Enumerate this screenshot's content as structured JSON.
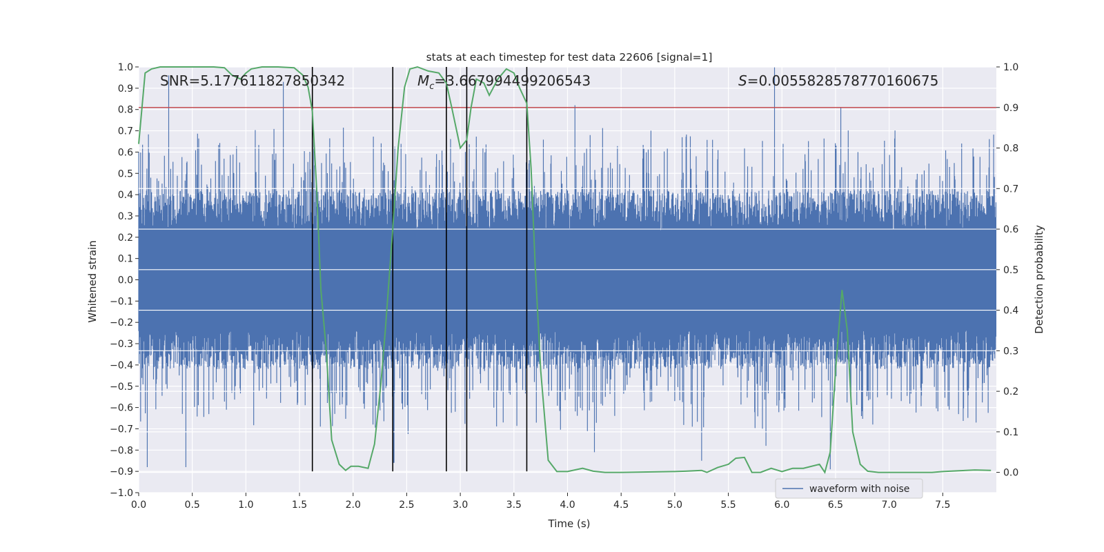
{
  "chart_data": {
    "type": "line",
    "title": "stats at each timestep for test data 22606 [signal=1]",
    "xlabel": "Time (s)",
    "ylabel_left": "Whitened strain",
    "ylabel_right": "Detection probability",
    "xlim": [
      0.0,
      8.0
    ],
    "ylim_left": [
      -1.0,
      1.0
    ],
    "ylim_right": [
      -0.05,
      1.0
    ],
    "x_ticks": [
      0.0,
      0.5,
      1.0,
      1.5,
      2.0,
      2.5,
      3.0,
      3.5,
      4.0,
      4.5,
      5.0,
      5.5,
      6.0,
      6.5,
      7.0,
      7.5
    ],
    "x_tick_labels": [
      "0.0",
      "0.5",
      "1.0",
      "1.5",
      "2.0",
      "2.5",
      "3.0",
      "3.5",
      "4.0",
      "4.5",
      "5.0",
      "5.5",
      "6.0",
      "6.5",
      "7.0",
      "7.5"
    ],
    "y_left_ticks": [
      -1.0,
      -0.9,
      -0.8,
      -0.7,
      -0.6,
      -0.5,
      -0.4,
      -0.3,
      -0.2,
      -0.1,
      0.0,
      0.1,
      0.2,
      0.3,
      0.4,
      0.5,
      0.6,
      0.7,
      0.8,
      0.9,
      1.0
    ],
    "y_left_tick_labels": [
      "−1.0",
      "−0.9",
      "−0.8",
      "−0.7",
      "−0.6",
      "−0.5",
      "−0.4",
      "−0.3",
      "−0.2",
      "−0.1",
      "0.0",
      "0.1",
      "0.2",
      "0.3",
      "0.4",
      "0.5",
      "0.6",
      "0.7",
      "0.8",
      "0.9",
      "1.0"
    ],
    "y_right_ticks": [
      0.0,
      0.1,
      0.2,
      0.3,
      0.4,
      0.5,
      0.6,
      0.7,
      0.8,
      0.9,
      1.0
    ],
    "y_right_tick_labels": [
      "0.0",
      "0.1",
      "0.2",
      "0.3",
      "0.4",
      "0.5",
      "0.6",
      "0.7",
      "0.8",
      "0.9",
      "1.0"
    ],
    "annotations": {
      "snr": "SNR=5.177611827850342",
      "mc_symbol": "M",
      "mc_sub": "c",
      "mc_value": "=3.667994499206543",
      "s_symbol": "S",
      "s_value": "=0.0055828578770160675"
    },
    "threshold": {
      "value": 0.9,
      "axis": "right",
      "color": "#c44e52"
    },
    "vertical_markers": [
      1.62,
      2.37,
      2.87,
      3.06,
      3.62
    ],
    "vertical_marker_range": [
      -0.9,
      1.0
    ],
    "waveform": {
      "name": "waveform with noise",
      "color": "#4c72b0",
      "duration": 8.0,
      "samples": 2200,
      "typical_amplitude": 0.42,
      "spikes": [
        [
          0.28,
          0.96
        ],
        [
          1.35,
          0.93
        ],
        [
          4.07,
          0.82
        ],
        [
          5.93,
          1.0
        ],
        [
          6.55,
          0.81
        ],
        [
          0.08,
          -0.88
        ],
        [
          0.44,
          -0.88
        ],
        [
          2.38,
          -0.86
        ],
        [
          5.25,
          -0.85
        ],
        [
          6.45,
          -0.89
        ],
        [
          4.25,
          -0.81
        ],
        [
          5.85,
          -0.78
        ]
      ]
    },
    "probability": {
      "name": "detection probability",
      "color": "#55a868",
      "x": [
        0.0,
        0.06,
        0.12,
        0.2,
        0.3,
        0.5,
        0.7,
        0.8,
        0.87,
        0.95,
        1.0,
        1.05,
        1.15,
        1.3,
        1.45,
        1.53,
        1.58,
        1.62,
        1.66,
        1.7,
        1.75,
        1.8,
        1.87,
        1.93,
        1.98,
        2.05,
        2.14,
        2.2,
        2.26,
        2.3,
        2.37,
        2.42,
        2.48,
        2.53,
        2.6,
        2.7,
        2.8,
        2.87,
        2.92,
        2.96,
        3.0,
        3.06,
        3.1,
        3.15,
        3.22,
        3.27,
        3.35,
        3.43,
        3.5,
        3.55,
        3.62,
        3.66,
        3.7,
        3.75,
        3.82,
        3.9,
        4.0,
        4.14,
        4.24,
        4.35,
        4.5,
        4.75,
        5.0,
        5.1,
        5.25,
        5.3,
        5.4,
        5.5,
        5.57,
        5.65,
        5.72,
        5.8,
        5.9,
        6.0,
        6.1,
        6.2,
        6.35,
        6.4,
        6.45,
        6.5,
        6.56,
        6.61,
        6.66,
        6.73,
        6.8,
        6.9,
        7.0,
        7.2,
        7.4,
        7.5,
        7.65,
        7.8,
        7.95
      ],
      "values": [
        0.81,
        0.985,
        0.995,
        1.0,
        1.0,
        1.0,
        1.0,
        0.998,
        0.98,
        0.97,
        0.985,
        0.995,
        1.0,
        1.0,
        0.998,
        0.98,
        0.95,
        0.89,
        0.7,
        0.45,
        0.3,
        0.08,
        0.02,
        0.005,
        0.015,
        0.015,
        0.01,
        0.07,
        0.22,
        0.35,
        0.6,
        0.8,
        0.95,
        0.995,
        1.0,
        0.99,
        0.985,
        0.96,
        0.9,
        0.85,
        0.8,
        0.82,
        0.9,
        0.97,
        0.96,
        0.93,
        0.97,
        0.995,
        0.985,
        0.95,
        0.91,
        0.75,
        0.5,
        0.25,
        0.03,
        0.002,
        0.002,
        0.01,
        0.003,
        0.0,
        0.0,
        0.001,
        0.002,
        0.003,
        0.005,
        0.0,
        0.012,
        0.02,
        0.035,
        0.037,
        0.0,
        0.0,
        0.01,
        0.002,
        0.01,
        0.01,
        0.02,
        0.0,
        0.05,
        0.25,
        0.45,
        0.35,
        0.1,
        0.02,
        0.003,
        0.0,
        0.0,
        0.0,
        0.0,
        0.002,
        0.004,
        0.006,
        0.005
      ]
    },
    "legend": {
      "label": "waveform with noise",
      "location": "lower-right"
    }
  }
}
